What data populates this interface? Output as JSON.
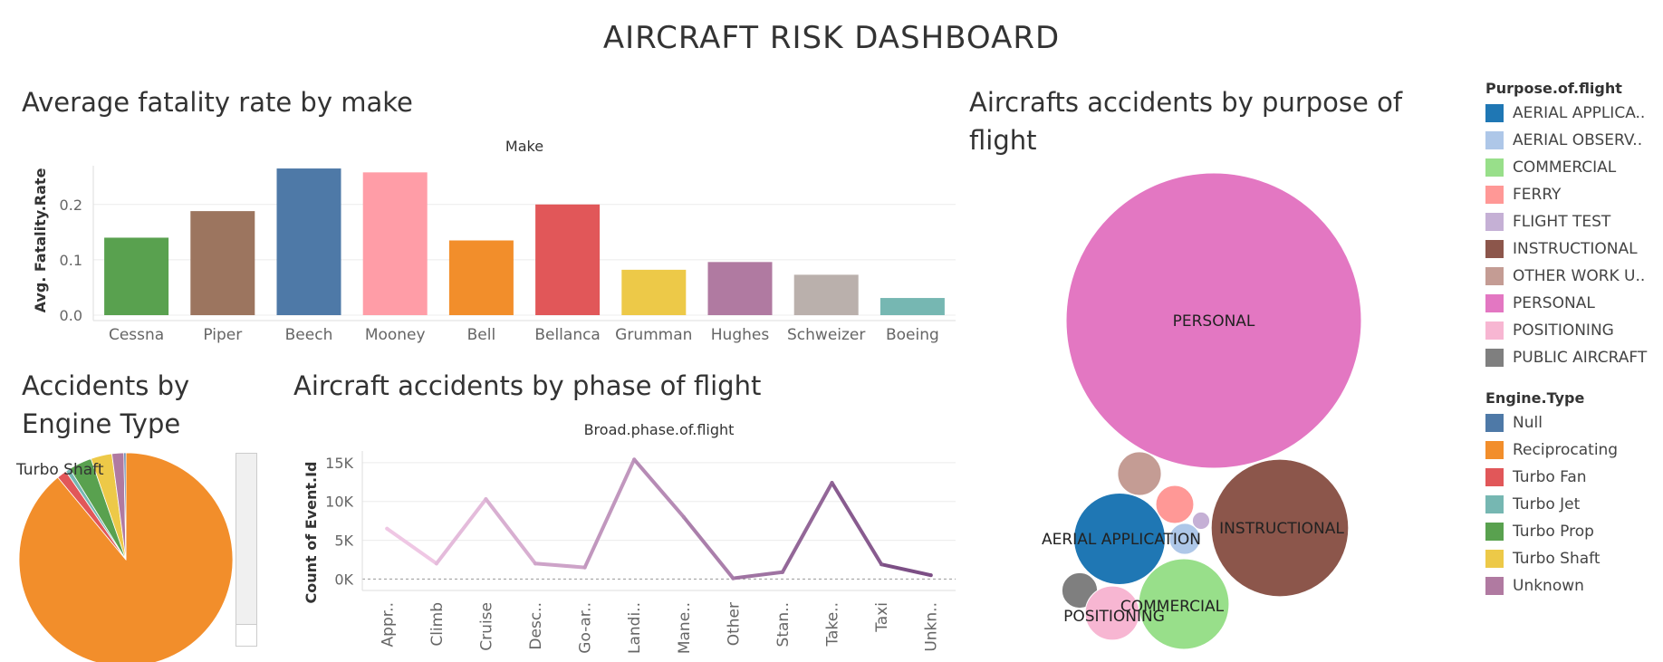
{
  "dashboard_title": "AIRCRAFT RISK DASHBOARD",
  "panels": {
    "fatality": "Average fatality rate by make",
    "purpose_line1": "Aircrafts accidents by purpose of",
    "purpose_line2": "flight",
    "engine_line1": "Accidents by",
    "engine_line2": "Engine Type",
    "phase": "Aircraft accidents by phase of flight"
  },
  "legends": {
    "purpose": {
      "title": "Purpose.of.flight",
      "items": [
        {
          "label": "AERIAL APPLICA..",
          "color": "#1f77b4"
        },
        {
          "label": "AERIAL OBSERV..",
          "color": "#aec7e8"
        },
        {
          "label": "COMMERCIAL",
          "color": "#98df8a"
        },
        {
          "label": "FERRY",
          "color": "#ff9896"
        },
        {
          "label": "FLIGHT TEST",
          "color": "#c5b0d5"
        },
        {
          "label": "INSTRUCTIONAL",
          "color": "#8c564b"
        },
        {
          "label": "OTHER WORK U..",
          "color": "#c49c94"
        },
        {
          "label": "PERSONAL",
          "color": "#e377c2"
        },
        {
          "label": "POSITIONING",
          "color": "#f7b6d2"
        },
        {
          "label": "PUBLIC AIRCRAFT",
          "color": "#7f7f7f"
        }
      ]
    },
    "engine": {
      "title": "Engine.Type",
      "items": [
        {
          "label": "Null",
          "color": "#4e79a7"
        },
        {
          "label": "Reciprocating",
          "color": "#f28e2b"
        },
        {
          "label": "Turbo Fan",
          "color": "#e15759"
        },
        {
          "label": "Turbo Jet",
          "color": "#76b7b2"
        },
        {
          "label": "Turbo Prop",
          "color": "#59a14f"
        },
        {
          "label": "Turbo Shaft",
          "color": "#edc948"
        },
        {
          "label": "Unknown",
          "color": "#b07aa1"
        }
      ]
    }
  },
  "chart_data": [
    {
      "id": "fatality",
      "type": "bar",
      "title": "Average fatality rate by make",
      "header": "Make",
      "ylabel": "Avg. Fatality.Rate",
      "ylim": [
        0,
        0.27
      ],
      "yticks": [
        0.0,
        0.1,
        0.2
      ],
      "ytick_labels": [
        "0.0",
        "0.1",
        "0.2"
      ],
      "categories": [
        "Cessna",
        "Piper",
        "Beech",
        "Mooney",
        "Bell",
        "Bellanca",
        "Grumman",
        "Hughes",
        "Schweizer",
        "Boeing"
      ],
      "values": [
        0.14,
        0.188,
        0.265,
        0.258,
        0.135,
        0.2,
        0.082,
        0.096,
        0.073,
        0.031
      ],
      "colors": [
        "#59a14f",
        "#9c755f",
        "#4e79a7",
        "#ff9da7",
        "#f28e2b",
        "#e15759",
        "#edc948",
        "#b07aa1",
        "#bab0ac",
        "#76b7b2"
      ]
    },
    {
      "id": "phase",
      "type": "line",
      "title": "Aircraft accidents by phase of flight",
      "header": "Broad.phase.of.flight",
      "ylabel": "Count of Event.Id",
      "ylim": [
        -1000,
        16500
      ],
      "yticks": [
        0,
        5000,
        10000,
        15000
      ],
      "ytick_labels": [
        "0K",
        "5K",
        "10K",
        "15K"
      ],
      "categories": [
        "Appr..",
        "Climb",
        "Cruise",
        "Desc..",
        "Go-ar..",
        "Landi..",
        "Mane..",
        "Other",
        "Stan..",
        "Take..",
        "Taxi",
        "Unkn.."
      ],
      "values": [
        6500,
        2000,
        10300,
        2000,
        1500,
        15400,
        8000,
        100,
        900,
        12400,
        1900,
        500
      ],
      "color_start": "#efc7e4",
      "color_end": "#7c4f85"
    },
    {
      "id": "engine",
      "type": "pie",
      "title": "Accidents by Engine Type",
      "labels": [
        "Reciprocating",
        "Turbo Fan",
        "Turbo Jet",
        "Turbo Prop",
        "Turbo Shaft",
        "Unknown",
        "Null"
      ],
      "values": [
        89.0,
        1.5,
        0.7,
        3.5,
        3.2,
        1.8,
        0.3
      ],
      "colors": [
        "#f28e2b",
        "#e15759",
        "#76b7b2",
        "#59a14f",
        "#edc948",
        "#b07aa1",
        "#4e79a7"
      ],
      "annotation": "Turbo Shaft"
    },
    {
      "id": "purpose",
      "type": "bubble",
      "title": "Aircrafts accidents by purpose of flight",
      "labels": [
        "PERSONAL",
        "INSTRUCTIONAL",
        "AERIAL APPLICATION",
        "COMMERCIAL",
        "OTHER WORK U..",
        "FERRY",
        "AERIAL OBSERV..",
        "PUBLIC AIRCRAFT",
        "POSITIONING",
        "FLIGHT TEST"
      ],
      "values": [
        49000,
        10600,
        4700,
        4600,
        1070,
        810,
        540,
        710,
        1650,
        170
      ],
      "colors": [
        "#e377c2",
        "#8c564b",
        "#1f77b4",
        "#98df8a",
        "#c49c94",
        "#ff9896",
        "#aec7e8",
        "#7f7f7f",
        "#f7b6d2",
        "#c5b0d5"
      ],
      "show_label": [
        true,
        true,
        true,
        true,
        false,
        false,
        false,
        false,
        true,
        false
      ]
    }
  ]
}
